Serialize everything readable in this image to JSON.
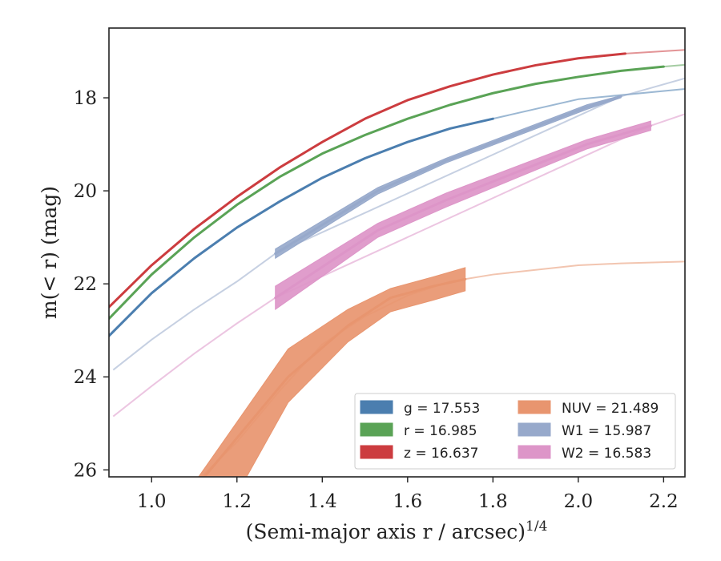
{
  "chart_data": {
    "type": "line",
    "xlabel": "(Semi-major axis r / arcsec)",
    "xlabel_sup": "1/4",
    "ylabel": "m(< r) (mag)",
    "xlim": [
      0.9,
      2.25
    ],
    "ylim": [
      26.15,
      16.5
    ],
    "y_inverted": true,
    "grid": false,
    "x_ticks": [
      1.0,
      1.2,
      1.4,
      1.6,
      1.8,
      2.0,
      2.2
    ],
    "x_tick_labels": [
      "1.0",
      "1.2",
      "1.4",
      "1.6",
      "1.8",
      "2.0",
      "2.2"
    ],
    "y_ticks": [
      18,
      20,
      22,
      24,
      26
    ],
    "y_tick_labels": [
      "18",
      "20",
      "22",
      "24",
      "26"
    ],
    "legend_position": "lower-right",
    "legend_columns": 2,
    "series": [
      {
        "name": "g = 17.553",
        "legend_label": "g = 17.553",
        "color": "#4b7eaf",
        "extrap_x": [
          1.8,
          2.0,
          2.25
        ],
        "extrap_y": [
          18.45,
          18.03,
          17.81
        ],
        "x": [
          0.9,
          1.0,
          1.1,
          1.2,
          1.3,
          1.4,
          1.5,
          1.6,
          1.7,
          1.8
        ],
        "y": [
          23.12,
          22.2,
          21.45,
          20.79,
          20.23,
          19.72,
          19.3,
          18.95,
          18.66,
          18.45
        ],
        "lo": [
          23.12,
          22.2,
          21.45,
          20.79,
          20.23,
          19.72,
          19.3,
          18.95,
          18.66,
          18.45
        ],
        "hi": [
          23.12,
          22.2,
          21.45,
          20.79,
          20.23,
          19.72,
          19.3,
          18.95,
          18.66,
          18.45
        ]
      },
      {
        "name": "r = 16.985",
        "legend_label": "r = 16.985",
        "color": "#5aa356",
        "extrap_x": [
          2.2,
          2.25
        ],
        "extrap_y": [
          17.33,
          17.29
        ],
        "x": [
          0.9,
          1.0,
          1.1,
          1.2,
          1.3,
          1.4,
          1.5,
          1.6,
          1.7,
          1.8,
          1.9,
          2.0,
          2.1,
          2.2
        ],
        "y": [
          22.75,
          21.8,
          21.0,
          20.3,
          19.7,
          19.2,
          18.8,
          18.45,
          18.15,
          17.9,
          17.7,
          17.55,
          17.42,
          17.33
        ],
        "lo": [
          22.75,
          21.8,
          21.0,
          20.3,
          19.7,
          19.2,
          18.8,
          18.45,
          18.15,
          17.9,
          17.7,
          17.55,
          17.42,
          17.33
        ],
        "hi": [
          22.75,
          21.8,
          21.0,
          20.3,
          19.7,
          19.2,
          18.8,
          18.45,
          18.15,
          17.9,
          17.7,
          17.55,
          17.42,
          17.33
        ]
      },
      {
        "name": "z = 16.637",
        "legend_label": "z = 16.637",
        "color": "#cc3c3f",
        "extrap_x": [
          2.11,
          2.25
        ],
        "extrap_y": [
          17.05,
          16.97
        ],
        "x": [
          0.9,
          1.0,
          1.1,
          1.2,
          1.3,
          1.4,
          1.5,
          1.6,
          1.7,
          1.8,
          1.9,
          2.0,
          2.11
        ],
        "y": [
          22.5,
          21.6,
          20.82,
          20.13,
          19.5,
          18.95,
          18.45,
          18.05,
          17.75,
          17.5,
          17.3,
          17.15,
          17.05
        ],
        "lo": [
          22.5,
          21.6,
          20.82,
          20.13,
          19.5,
          18.95,
          18.45,
          18.05,
          17.75,
          17.5,
          17.3,
          17.15,
          17.05
        ],
        "hi": [
          22.5,
          21.6,
          20.82,
          20.13,
          19.5,
          18.95,
          18.45,
          18.05,
          17.75,
          17.5,
          17.3,
          17.15,
          17.05
        ]
      },
      {
        "name": "NUV = 21.489",
        "legend_label": "NUV = 21.489",
        "color": "#e8956f",
        "extrap_x": [
          0.9,
          1.0,
          1.1,
          1.2,
          1.3,
          1.4,
          1.5,
          1.6,
          1.7,
          1.8,
          1.9,
          2.0,
          2.1,
          2.25
        ],
        "extrap_y": [
          27.5,
          27.0,
          26.3,
          25.4,
          24.3,
          23.3,
          22.7,
          22.25,
          21.95,
          21.8,
          21.7,
          21.6,
          21.56,
          21.52
        ],
        "x": [
          1.11,
          1.32,
          1.46,
          1.56,
          1.66,
          1.735
        ],
        "y": [
          26.3,
          24.0,
          22.9,
          22.3,
          22.05,
          21.9
        ],
        "lo": [
          26.15,
          23.4,
          22.55,
          22.1,
          21.85,
          21.65
        ],
        "hi": [
          28.0,
          24.55,
          23.25,
          22.6,
          22.35,
          22.15
        ]
      },
      {
        "name": "W1 = 15.987",
        "legend_label": "W1 = 15.987",
        "color": "#97a9cb",
        "extrap_x": [
          0.91,
          1.0,
          1.1,
          1.2,
          1.29,
          2.1,
          2.25
        ],
        "extrap_y": [
          23.85,
          23.2,
          22.55,
          21.95,
          21.35,
          17.97,
          17.58
        ],
        "x": [
          1.29,
          1.53,
          1.69,
          2.02,
          2.1
        ],
        "y": [
          21.35,
          20.0,
          19.35,
          18.2,
          17.97
        ],
        "lo": [
          21.25,
          19.93,
          19.3,
          18.15,
          17.95
        ],
        "hi": [
          21.45,
          20.07,
          19.4,
          18.25,
          18.0
        ]
      },
      {
        "name": "W2 = 16.583",
        "legend_label": "W2 = 16.583",
        "color": "#dd95c8",
        "extrap_x": [
          0.91,
          1.0,
          1.1,
          1.2,
          1.29,
          2.17,
          2.25
        ],
        "extrap_y": [
          24.85,
          24.2,
          23.5,
          22.85,
          22.3,
          18.6,
          18.35
        ],
        "x": [
          1.29,
          1.53,
          1.69,
          2.02,
          2.17
        ],
        "y": [
          22.3,
          20.85,
          20.2,
          19.0,
          18.6
        ],
        "lo": [
          22.05,
          20.7,
          20.05,
          18.9,
          18.5
        ],
        "hi": [
          22.55,
          21.0,
          20.35,
          19.1,
          18.7
        ]
      }
    ]
  }
}
